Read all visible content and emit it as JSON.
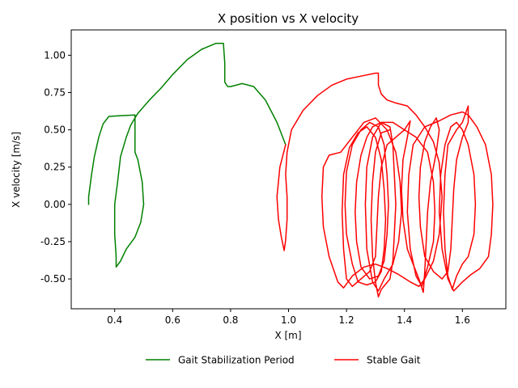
{
  "chart_data": {
    "type": "line",
    "title": "X position vs X velocity",
    "xlabel": "X [m]",
    "ylabel": "X velocity [m/s]",
    "xlim": [
      0.25,
      1.75
    ],
    "ylim": [
      -0.7,
      1.17
    ],
    "xticks": [
      0.4,
      0.6,
      0.8,
      1.0,
      1.2,
      1.4,
      1.6
    ],
    "yticks": [
      -0.5,
      -0.25,
      0.0,
      0.25,
      0.5,
      0.75,
      1.0
    ],
    "grid": false,
    "legend_placement": "bottom-center-outside",
    "series": [
      {
        "name": "Gait Stabilization Period",
        "color": "#008000",
        "points": [
          [
            0.31,
            0.0
          ],
          [
            0.31,
            0.05
          ],
          [
            0.32,
            0.2
          ],
          [
            0.33,
            0.32
          ],
          [
            0.345,
            0.45
          ],
          [
            0.36,
            0.54
          ],
          [
            0.38,
            0.59
          ],
          [
            0.42,
            0.595
          ],
          [
            0.47,
            0.6
          ],
          [
            0.47,
            0.35
          ],
          [
            0.48,
            0.3
          ],
          [
            0.495,
            0.15
          ],
          [
            0.5,
            0.0
          ],
          [
            0.49,
            -0.12
          ],
          [
            0.47,
            -0.22
          ],
          [
            0.44,
            -0.3
          ],
          [
            0.42,
            -0.38
          ],
          [
            0.405,
            -0.42
          ],
          [
            0.405,
            -0.35
          ],
          [
            0.4,
            -0.2
          ],
          [
            0.4,
            0.0
          ],
          [
            0.41,
            0.15
          ],
          [
            0.42,
            0.32
          ],
          [
            0.44,
            0.45
          ],
          [
            0.455,
            0.53
          ],
          [
            0.47,
            0.58
          ],
          [
            0.48,
            0.61
          ],
          [
            0.52,
            0.7
          ],
          [
            0.56,
            0.78
          ],
          [
            0.6,
            0.87
          ],
          [
            0.65,
            0.97
          ],
          [
            0.7,
            1.04
          ],
          [
            0.75,
            1.08
          ],
          [
            0.775,
            1.08
          ],
          [
            0.78,
            0.95
          ],
          [
            0.78,
            0.82
          ],
          [
            0.79,
            0.79
          ],
          [
            0.8,
            0.79
          ],
          [
            0.84,
            0.81
          ],
          [
            0.88,
            0.79
          ],
          [
            0.92,
            0.7
          ],
          [
            0.96,
            0.55
          ],
          [
            0.99,
            0.4
          ]
        ]
      },
      {
        "name": "Stable Gait",
        "color": "#ff0000",
        "points": [
          [
            0.99,
            0.4
          ],
          [
            0.97,
            0.25
          ],
          [
            0.96,
            0.05
          ],
          [
            0.965,
            -0.1
          ],
          [
            0.975,
            -0.22
          ],
          [
            0.985,
            -0.31
          ],
          [
            0.99,
            -0.24
          ],
          [
            0.995,
            -0.1
          ],
          [
            0.995,
            0.05
          ],
          [
            0.99,
            0.2
          ],
          [
            0.995,
            0.35
          ],
          [
            1.01,
            0.5
          ],
          [
            1.05,
            0.63
          ],
          [
            1.1,
            0.73
          ],
          [
            1.15,
            0.8
          ],
          [
            1.2,
            0.84
          ],
          [
            1.25,
            0.86
          ],
          [
            1.3,
            0.88
          ],
          [
            1.31,
            0.88
          ],
          [
            1.31,
            0.8
          ],
          [
            1.32,
            0.74
          ],
          [
            1.34,
            0.7
          ],
          [
            1.37,
            0.68
          ],
          [
            1.41,
            0.66
          ],
          [
            1.44,
            0.6
          ],
          [
            1.47,
            0.52
          ],
          [
            1.5,
            0.42
          ],
          [
            1.52,
            0.28
          ],
          [
            1.53,
            0.05
          ],
          [
            1.52,
            -0.2
          ],
          [
            1.5,
            -0.38
          ],
          [
            1.47,
            -0.5
          ],
          [
            1.45,
            -0.55
          ],
          [
            1.42,
            -0.52
          ],
          [
            1.38,
            -0.47
          ],
          [
            1.34,
            -0.43
          ],
          [
            1.3,
            -0.4
          ],
          [
            1.26,
            -0.42
          ],
          [
            1.22,
            -0.48
          ],
          [
            1.19,
            -0.56
          ],
          [
            1.17,
            -0.52
          ],
          [
            1.14,
            -0.35
          ],
          [
            1.12,
            -0.15
          ],
          [
            1.115,
            0.05
          ],
          [
            1.12,
            0.25
          ],
          [
            1.14,
            0.33
          ],
          [
            1.18,
            0.35
          ],
          [
            1.22,
            0.45
          ],
          [
            1.26,
            0.55
          ],
          [
            1.3,
            0.58
          ],
          [
            1.34,
            0.5
          ],
          [
            1.37,
            0.35
          ],
          [
            1.385,
            0.15
          ],
          [
            1.39,
            -0.05
          ],
          [
            1.38,
            -0.25
          ],
          [
            1.36,
            -0.4
          ],
          [
            1.33,
            -0.5
          ],
          [
            1.31,
            -0.58
          ],
          [
            1.29,
            -0.52
          ],
          [
            1.27,
            -0.3
          ],
          [
            1.265,
            0.0
          ],
          [
            1.27,
            0.25
          ],
          [
            1.29,
            0.45
          ],
          [
            1.32,
            0.55
          ],
          [
            1.36,
            0.55
          ],
          [
            1.4,
            0.5
          ],
          [
            1.44,
            0.45
          ],
          [
            1.48,
            0.35
          ],
          [
            1.5,
            0.15
          ],
          [
            1.505,
            -0.05
          ],
          [
            1.5,
            -0.25
          ],
          [
            1.48,
            -0.42
          ],
          [
            1.46,
            -0.55
          ],
          [
            1.44,
            -0.48
          ],
          [
            1.42,
            -0.3
          ],
          [
            1.41,
            -0.05
          ],
          [
            1.415,
            0.2
          ],
          [
            1.43,
            0.4
          ],
          [
            1.47,
            0.52
          ],
          [
            1.52,
            0.56
          ],
          [
            1.56,
            0.6
          ],
          [
            1.6,
            0.62
          ],
          [
            1.62,
            0.6
          ],
          [
            1.65,
            0.52
          ],
          [
            1.68,
            0.4
          ],
          [
            1.7,
            0.2
          ],
          [
            1.705,
            0.0
          ],
          [
            1.7,
            -0.2
          ],
          [
            1.69,
            -0.35
          ],
          [
            1.66,
            -0.43
          ],
          [
            1.63,
            -0.47
          ],
          [
            1.6,
            -0.52
          ],
          [
            1.57,
            -0.58
          ],
          [
            1.55,
            -0.5
          ],
          [
            1.53,
            -0.3
          ],
          [
            1.52,
            -0.05
          ],
          [
            1.525,
            0.2
          ],
          [
            1.54,
            0.4
          ],
          [
            1.56,
            0.52
          ],
          [
            1.58,
            0.55
          ],
          [
            1.6,
            0.5
          ],
          [
            1.62,
            0.4
          ],
          [
            1.64,
            0.2
          ],
          [
            1.645,
            0.0
          ],
          [
            1.64,
            -0.2
          ],
          [
            1.62,
            -0.35
          ],
          [
            1.6,
            -0.4
          ],
          [
            1.58,
            -0.48
          ],
          [
            1.565,
            -0.57
          ],
          [
            1.55,
            -0.48
          ],
          [
            1.54,
            -0.3
          ],
          [
            1.535,
            -0.05
          ],
          [
            1.54,
            0.2
          ],
          [
            1.55,
            0.4
          ],
          [
            1.58,
            0.5
          ],
          [
            1.6,
            0.55
          ],
          [
            1.62,
            0.66
          ],
          [
            1.62,
            0.55
          ],
          [
            1.6,
            0.45
          ],
          [
            1.58,
            0.3
          ],
          [
            1.57,
            0.1
          ],
          [
            1.565,
            -0.1
          ],
          [
            1.56,
            -0.3
          ],
          [
            1.55,
            -0.45
          ],
          [
            1.53,
            -0.5
          ],
          [
            1.5,
            -0.45
          ],
          [
            1.47,
            -0.35
          ],
          [
            1.455,
            -0.15
          ],
          [
            1.45,
            0.05
          ],
          [
            1.455,
            0.25
          ],
          [
            1.47,
            0.42
          ],
          [
            1.49,
            0.52
          ],
          [
            1.51,
            0.58
          ],
          [
            1.52,
            0.5
          ],
          [
            1.51,
            0.35
          ],
          [
            1.49,
            0.15
          ],
          [
            1.48,
            -0.05
          ],
          [
            1.475,
            -0.25
          ],
          [
            1.47,
            -0.45
          ],
          [
            1.465,
            -0.59
          ],
          [
            1.45,
            -0.5
          ],
          [
            1.43,
            -0.4
          ],
          [
            1.41,
            -0.3
          ],
          [
            1.395,
            -0.1
          ],
          [
            1.39,
            0.1
          ],
          [
            1.395,
            0.3
          ],
          [
            1.41,
            0.45
          ],
          [
            1.42,
            0.56
          ],
          [
            1.4,
            0.5
          ],
          [
            1.37,
            0.45
          ],
          [
            1.34,
            0.4
          ],
          [
            1.32,
            0.25
          ],
          [
            1.31,
            0.05
          ],
          [
            1.305,
            -0.15
          ],
          [
            1.3,
            -0.35
          ],
          [
            1.28,
            -0.45
          ],
          [
            1.25,
            -0.5
          ],
          [
            1.22,
            -0.55
          ],
          [
            1.2,
            -0.5
          ],
          [
            1.19,
            -0.3
          ],
          [
            1.185,
            -0.05
          ],
          [
            1.19,
            0.2
          ],
          [
            1.21,
            0.38
          ],
          [
            1.24,
            0.48
          ],
          [
            1.27,
            0.52
          ],
          [
            1.3,
            0.45
          ],
          [
            1.32,
            0.3
          ],
          [
            1.33,
            0.1
          ],
          [
            1.335,
            -0.1
          ],
          [
            1.33,
            -0.3
          ],
          [
            1.32,
            -0.45
          ],
          [
            1.3,
            -0.52
          ],
          [
            1.27,
            -0.54
          ],
          [
            1.24,
            -0.52
          ],
          [
            1.22,
            -0.4
          ],
          [
            1.2,
            -0.2
          ],
          [
            1.195,
            0.0
          ],
          [
            1.2,
            0.22
          ],
          [
            1.22,
            0.4
          ],
          [
            1.25,
            0.5
          ],
          [
            1.28,
            0.55
          ],
          [
            1.31,
            0.52
          ],
          [
            1.33,
            0.4
          ],
          [
            1.34,
            0.2
          ],
          [
            1.345,
            0.0
          ],
          [
            1.34,
            -0.2
          ],
          [
            1.33,
            -0.38
          ],
          [
            1.31,
            -0.48
          ],
          [
            1.28,
            -0.5
          ],
          [
            1.25,
            -0.42
          ],
          [
            1.235,
            -0.25
          ],
          [
            1.23,
            -0.05
          ],
          [
            1.235,
            0.15
          ],
          [
            1.25,
            0.33
          ],
          [
            1.27,
            0.45
          ],
          [
            1.29,
            0.52
          ],
          [
            1.32,
            0.55
          ],
          [
            1.35,
            0.52
          ],
          [
            1.36,
            0.4
          ],
          [
            1.365,
            0.2
          ],
          [
            1.37,
            0.0
          ],
          [
            1.365,
            -0.2
          ],
          [
            1.36,
            -0.38
          ],
          [
            1.35,
            -0.5
          ],
          [
            1.32,
            -0.57
          ],
          [
            1.31,
            -0.62
          ],
          [
            1.3,
            -0.52
          ],
          [
            1.29,
            -0.35
          ],
          [
            1.285,
            -0.1
          ],
          [
            1.29,
            0.15
          ],
          [
            1.3,
            0.35
          ],
          [
            1.32,
            0.48
          ],
          [
            1.35,
            0.5
          ]
        ]
      }
    ]
  }
}
